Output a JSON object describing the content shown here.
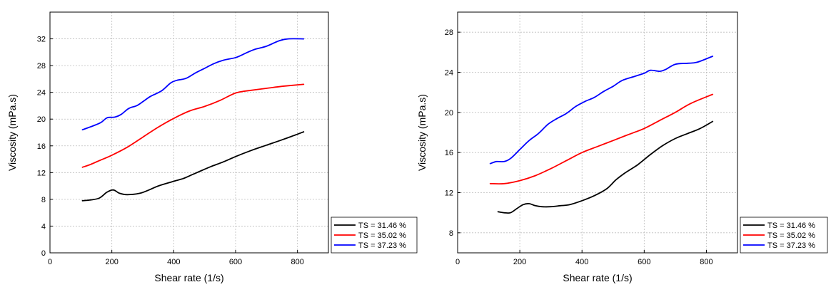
{
  "chart_data": [
    {
      "type": "line",
      "xlabel": "Shear rate (1/s)",
      "ylabel": "Viscosity (mPa.s)",
      "xlim": [
        0,
        900
      ],
      "ylim": [
        0,
        36
      ],
      "xticks": [
        0,
        200,
        400,
        600,
        800
      ],
      "yticks": [
        0,
        4,
        8,
        12,
        16,
        20,
        24,
        28,
        32
      ],
      "grid": true,
      "legend_position": "bottom-right-outside",
      "series": [
        {
          "name": "TS = 31.46 %",
          "color": "#000000",
          "points": [
            [
              105,
              7.8
            ],
            [
              130,
              7.9
            ],
            [
              160,
              8.2
            ],
            [
              185,
              9.1
            ],
            [
              205,
              9.4
            ],
            [
              225,
              8.9
            ],
            [
              250,
              8.7
            ],
            [
              290,
              8.9
            ],
            [
              320,
              9.4
            ],
            [
              350,
              10.0
            ],
            [
              400,
              10.7
            ],
            [
              430,
              11.1
            ],
            [
              460,
              11.7
            ],
            [
              490,
              12.3
            ],
            [
              520,
              12.9
            ],
            [
              560,
              13.6
            ],
            [
              600,
              14.4
            ],
            [
              650,
              15.3
            ],
            [
              700,
              16.1
            ],
            [
              750,
              16.9
            ],
            [
              780,
              17.4
            ],
            [
              820,
              18.1
            ]
          ]
        },
        {
          "name": "TS = 35.02 %",
          "color": "#ff0000",
          "points": [
            [
              105,
              12.8
            ],
            [
              130,
              13.2
            ],
            [
              160,
              13.8
            ],
            [
              200,
              14.6
            ],
            [
              250,
              15.8
            ],
            [
              300,
              17.3
            ],
            [
              350,
              18.8
            ],
            [
              400,
              20.1
            ],
            [
              450,
              21.2
            ],
            [
              500,
              21.9
            ],
            [
              550,
              22.8
            ],
            [
              600,
              23.9
            ],
            [
              650,
              24.3
            ],
            [
              700,
              24.6
            ],
            [
              750,
              24.9
            ],
            [
              820,
              25.2
            ]
          ]
        },
        {
          "name": "TS = 37.23 %",
          "color": "#0000ff",
          "points": [
            [
              105,
              18.4
            ],
            [
              140,
              19.0
            ],
            [
              165,
              19.5
            ],
            [
              185,
              20.2
            ],
            [
              210,
              20.3
            ],
            [
              230,
              20.7
            ],
            [
              255,
              21.6
            ],
            [
              280,
              22.0
            ],
            [
              300,
              22.6
            ],
            [
              325,
              23.4
            ],
            [
              360,
              24.2
            ],
            [
              390,
              25.4
            ],
            [
              410,
              25.8
            ],
            [
              440,
              26.1
            ],
            [
              470,
              26.9
            ],
            [
              500,
              27.6
            ],
            [
              530,
              28.3
            ],
            [
              560,
              28.8
            ],
            [
              600,
              29.2
            ],
            [
              630,
              29.8
            ],
            [
              660,
              30.4
            ],
            [
              700,
              30.9
            ],
            [
              740,
              31.7
            ],
            [
              770,
              32.0
            ],
            [
              820,
              32.0
            ]
          ]
        }
      ]
    },
    {
      "type": "line",
      "xlabel": "Shear rate (1/s)",
      "ylabel": "Viscosity (mPa.s)",
      "xlim": [
        0,
        900
      ],
      "ylim": [
        6,
        30
      ],
      "xticks": [
        0,
        200,
        400,
        600,
        800
      ],
      "yticks": [
        8,
        12,
        16,
        20,
        24,
        28
      ],
      "grid": true,
      "legend_position": "bottom-right-outside",
      "series": [
        {
          "name": "TS = 31.46 %",
          "color": "#000000",
          "points": [
            [
              130,
              10.1
            ],
            [
              150,
              10.0
            ],
            [
              170,
              10.0
            ],
            [
              190,
              10.4
            ],
            [
              210,
              10.8
            ],
            [
              230,
              10.9
            ],
            [
              250,
              10.7
            ],
            [
              270,
              10.6
            ],
            [
              300,
              10.6
            ],
            [
              330,
              10.7
            ],
            [
              360,
              10.8
            ],
            [
              400,
              11.2
            ],
            [
              440,
              11.7
            ],
            [
              480,
              12.4
            ],
            [
              510,
              13.3
            ],
            [
              540,
              14.0
            ],
            [
              580,
              14.8
            ],
            [
              620,
              15.8
            ],
            [
              660,
              16.7
            ],
            [
              700,
              17.4
            ],
            [
              740,
              17.9
            ],
            [
              780,
              18.4
            ],
            [
              820,
              19.1
            ]
          ]
        },
        {
          "name": "TS = 35.02 %",
          "color": "#ff0000",
          "points": [
            [
              105,
              12.9
            ],
            [
              150,
              12.9
            ],
            [
              200,
              13.2
            ],
            [
              250,
              13.7
            ],
            [
              300,
              14.4
            ],
            [
              350,
              15.2
            ],
            [
              400,
              16.0
            ],
            [
              450,
              16.6
            ],
            [
              500,
              17.2
            ],
            [
              550,
              17.8
            ],
            [
              600,
              18.4
            ],
            [
              650,
              19.2
            ],
            [
              700,
              20.0
            ],
            [
              750,
              20.9
            ],
            [
              820,
              21.8
            ]
          ]
        },
        {
          "name": "TS = 37.23 %",
          "color": "#0000ff",
          "points": [
            [
              105,
              14.9
            ],
            [
              125,
              15.1
            ],
            [
              150,
              15.1
            ],
            [
              170,
              15.4
            ],
            [
              200,
              16.3
            ],
            [
              230,
              17.2
            ],
            [
              260,
              17.9
            ],
            [
              290,
              18.8
            ],
            [
              320,
              19.4
            ],
            [
              350,
              19.9
            ],
            [
              380,
              20.6
            ],
            [
              410,
              21.1
            ],
            [
              440,
              21.5
            ],
            [
              470,
              22.1
            ],
            [
              500,
              22.6
            ],
            [
              530,
              23.2
            ],
            [
              570,
              23.6
            ],
            [
              600,
              23.9
            ],
            [
              620,
              24.2
            ],
            [
              650,
              24.1
            ],
            [
              670,
              24.3
            ],
            [
              700,
              24.8
            ],
            [
              740,
              24.9
            ],
            [
              770,
              25.0
            ],
            [
              820,
              25.6
            ]
          ]
        }
      ]
    }
  ]
}
